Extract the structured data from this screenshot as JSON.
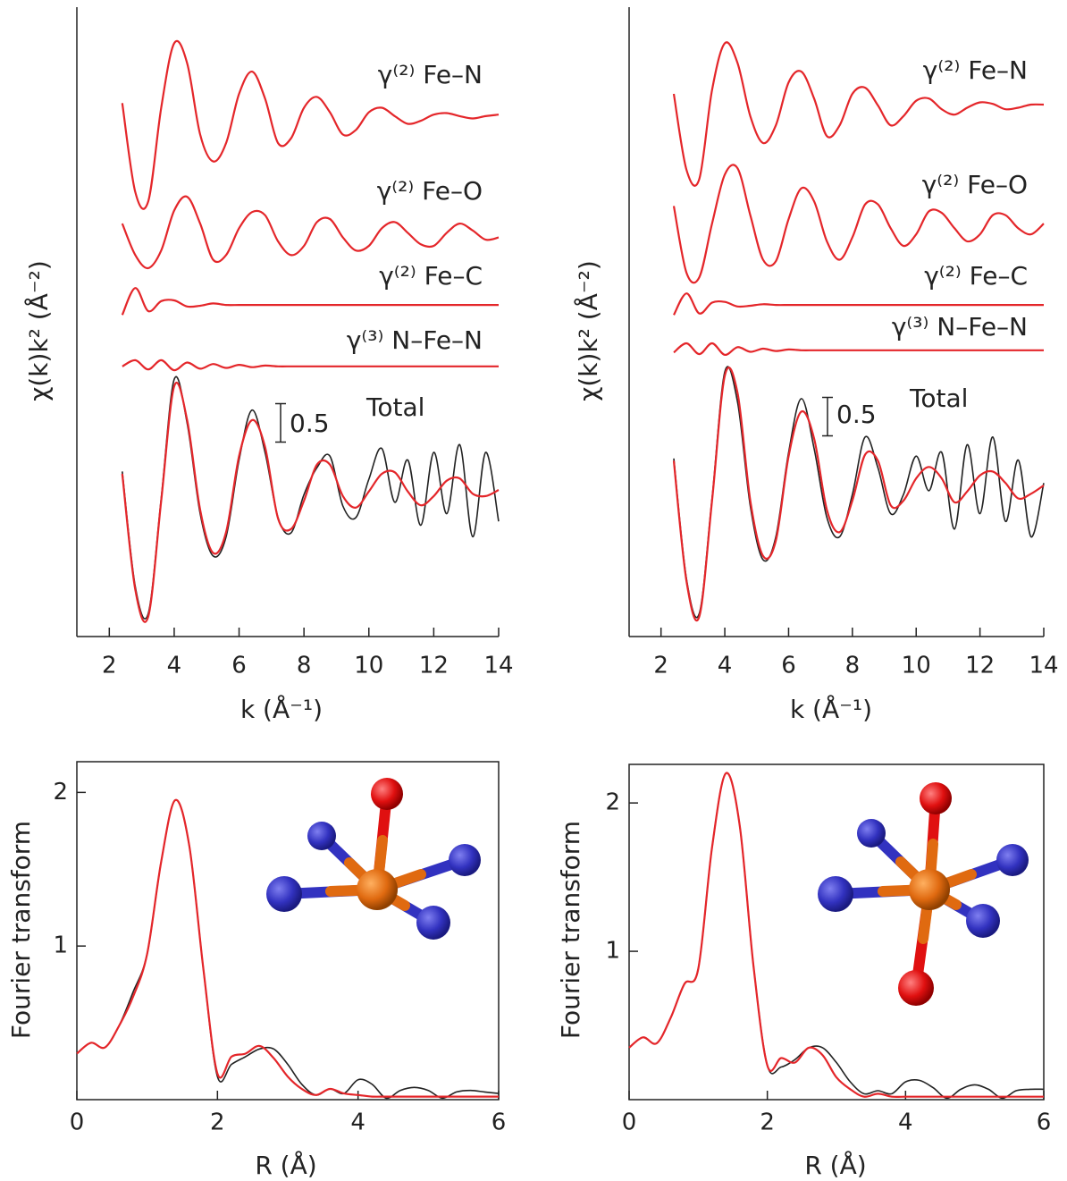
{
  "chart_data": [
    {
      "type": "line",
      "y_label": "χ(k)k² (Å⁻²)",
      "x_label": "k (Å⁻¹)",
      "scale_bar": 0.5,
      "xlim": [
        1,
        14
      ],
      "ylim": [
        0,
        8.2
      ],
      "xticks": [
        2,
        4,
        6,
        8,
        10,
        12,
        14
      ],
      "box": false,
      "x": [
        2.4,
        2.8,
        3.2,
        3.6,
        4.0,
        4.4,
        4.8,
        5.2,
        5.6,
        6.0,
        6.4,
        6.8,
        7.2,
        7.6,
        8.0,
        8.4,
        8.8,
        9.2,
        9.6,
        10.0,
        10.4,
        10.8,
        11.2,
        11.6,
        12.0,
        12.4,
        12.8,
        13.2,
        13.6,
        14.0
      ],
      "series": [
        {
          "name": "γ⁽²⁾ Fe–N",
          "color": "#e4262a",
          "values": [
            6.95,
            5.79,
            5.67,
            6.89,
            7.73,
            7.47,
            6.54,
            6.19,
            6.43,
            7.07,
            7.36,
            7.01,
            6.43,
            6.49,
            6.89,
            7.03,
            6.83,
            6.54,
            6.6,
            6.83,
            6.89,
            6.78,
            6.68,
            6.72,
            6.8,
            6.82,
            6.78,
            6.75,
            6.78,
            6.8
          ]
        },
        {
          "name": "γ⁽²⁾ Fe–O",
          "color": "#e4262a",
          "values": [
            5.38,
            4.97,
            4.8,
            5.03,
            5.55,
            5.73,
            5.38,
            4.91,
            4.97,
            5.32,
            5.53,
            5.49,
            5.15,
            4.97,
            5.09,
            5.4,
            5.44,
            5.2,
            5.03,
            5.09,
            5.32,
            5.4,
            5.26,
            5.11,
            5.09,
            5.26,
            5.38,
            5.29,
            5.17,
            5.2
          ]
        },
        {
          "name": "γ⁽²⁾ Fe–C",
          "color": "#e4262a",
          "values": [
            4.19,
            4.54,
            4.24,
            4.37,
            4.38,
            4.3,
            4.31,
            4.34,
            4.32,
            4.32,
            4.32,
            4.32,
            4.32,
            4.32,
            4.32,
            4.32,
            4.32,
            4.32,
            4.32,
            4.32,
            4.32,
            4.32,
            4.32,
            4.32,
            4.32,
            4.32,
            4.32,
            4.32,
            4.32,
            4.32
          ]
        },
        {
          "name": "γ⁽³⁾ N–Fe–N",
          "color": "#e4262a",
          "values": [
            3.52,
            3.6,
            3.48,
            3.6,
            3.47,
            3.57,
            3.49,
            3.55,
            3.5,
            3.54,
            3.51,
            3.53,
            3.52,
            3.52,
            3.52,
            3.52,
            3.52,
            3.52,
            3.52,
            3.52,
            3.52,
            3.52,
            3.52,
            3.52,
            3.52,
            3.52,
            3.52,
            3.52,
            3.52,
            3.52
          ]
        },
        {
          "color": "#222222",
          "values": [
            2.15,
            0.65,
            0.3,
            1.8,
            3.35,
            2.78,
            1.6,
            1.05,
            1.3,
            2.3,
            2.95,
            2.4,
            1.55,
            1.35,
            1.85,
            2.2,
            2.35,
            1.7,
            1.55,
            2.05,
            2.45,
            1.75,
            2.3,
            1.45,
            2.4,
            1.6,
            2.5,
            1.3,
            2.4,
            1.5
          ]
        },
        {
          "name": "Total",
          "color": "#e4262a",
          "values": [
            2.12,
            0.61,
            0.26,
            1.77,
            3.26,
            2.82,
            1.65,
            1.09,
            1.36,
            2.35,
            2.82,
            2.47,
            1.54,
            1.4,
            1.77,
            2.24,
            2.24,
            1.83,
            1.68,
            1.89,
            2.12,
            2.14,
            1.89,
            1.71,
            1.83,
            2.03,
            2.06,
            1.86,
            1.83,
            1.91
          ]
        }
      ]
    },
    {
      "type": "line",
      "y_label": "χ(k)k² (Å⁻²)",
      "x_label": "k (Å⁻¹)",
      "scale_bar": 0.5,
      "xlim": [
        1,
        14
      ],
      "ylim": [
        0,
        8.2
      ],
      "xticks": [
        2,
        4,
        6,
        8,
        10,
        12,
        14
      ],
      "box": false,
      "x": [
        2.4,
        2.8,
        3.2,
        3.6,
        4.0,
        4.4,
        4.8,
        5.2,
        5.6,
        6.0,
        6.4,
        6.8,
        7.2,
        7.6,
        8.0,
        8.4,
        8.8,
        9.2,
        9.6,
        10.0,
        10.4,
        10.8,
        11.2,
        11.6,
        12.0,
        12.4,
        12.8,
        13.2,
        13.6,
        14.0
      ],
      "series": [
        {
          "name": "γ⁽²⁾ Fe–N",
          "color": "#e4262a",
          "values": [
            7.07,
            6.08,
            5.96,
            7.12,
            7.73,
            7.47,
            6.78,
            6.43,
            6.66,
            7.22,
            7.36,
            7.01,
            6.52,
            6.66,
            7.07,
            7.15,
            6.92,
            6.66,
            6.78,
            6.98,
            7.01,
            6.87,
            6.8,
            6.89,
            6.96,
            6.94,
            6.87,
            6.89,
            6.93,
            6.93
          ]
        },
        {
          "name": "γ⁽²⁾ Fe–O",
          "color": "#e4262a",
          "values": [
            5.61,
            4.74,
            4.68,
            5.38,
            6.02,
            6.1,
            5.49,
            4.91,
            4.89,
            5.44,
            5.84,
            5.67,
            5.15,
            4.91,
            5.2,
            5.63,
            5.63,
            5.32,
            5.09,
            5.24,
            5.54,
            5.52,
            5.32,
            5.15,
            5.24,
            5.49,
            5.49,
            5.32,
            5.24,
            5.38
          ]
        },
        {
          "name": "γ⁽²⁾ Fe–C",
          "color": "#e4262a",
          "values": [
            4.19,
            4.47,
            4.21,
            4.35,
            4.36,
            4.3,
            4.31,
            4.33,
            4.32,
            4.32,
            4.32,
            4.32,
            4.32,
            4.32,
            4.32,
            4.32,
            4.32,
            4.32,
            4.32,
            4.32,
            4.32,
            4.32,
            4.32,
            4.32,
            4.32,
            4.32,
            4.32,
            4.32,
            4.32,
            4.32
          ]
        },
        {
          "name": "γ⁽³⁾ N–Fe–N",
          "color": "#e4262a",
          "values": [
            3.7,
            3.82,
            3.68,
            3.82,
            3.67,
            3.77,
            3.71,
            3.75,
            3.72,
            3.74,
            3.73,
            3.73,
            3.73,
            3.73,
            3.73,
            3.73,
            3.73,
            3.73,
            3.73,
            3.73,
            3.73,
            3.73,
            3.73,
            3.73,
            3.73,
            3.73,
            3.73,
            3.73,
            3.73,
            3.73
          ]
        },
        {
          "color": "#222222",
          "values": [
            2.32,
            0.75,
            0.3,
            1.8,
            3.45,
            3.05,
            1.7,
            1.0,
            1.3,
            2.4,
            3.1,
            2.45,
            1.55,
            1.3,
            1.85,
            2.6,
            2.2,
            1.6,
            1.85,
            2.35,
            1.9,
            2.4,
            1.4,
            2.5,
            1.6,
            2.6,
            1.5,
            2.3,
            1.3,
            2.0
          ]
        },
        {
          "name": "Total",
          "color": "#e4262a",
          "values": [
            2.29,
            0.72,
            0.26,
            1.77,
            3.4,
            3.17,
            1.77,
            1.05,
            1.25,
            2.35,
            2.93,
            2.58,
            1.65,
            1.36,
            1.77,
            2.37,
            2.29,
            1.71,
            1.77,
            2.06,
            2.21,
            2.06,
            1.75,
            1.89,
            2.1,
            2.15,
            2.0,
            1.8,
            1.86,
            1.97
          ]
        }
      ]
    },
    {
      "type": "line",
      "y_label": "Fourier transform",
      "x_label": "R (Å)",
      "xlim": [
        0,
        6
      ],
      "ylim": [
        0,
        2.2
      ],
      "xticks": [
        0,
        2,
        4,
        6
      ],
      "yticks": [
        1,
        2
      ],
      "box": true,
      "x": [
        0,
        0.2,
        0.4,
        0.6,
        0.8,
        1.0,
        1.2,
        1.4,
        1.6,
        1.8,
        2.0,
        2.2,
        2.4,
        2.6,
        2.8,
        3.0,
        3.2,
        3.4,
        3.6,
        3.8,
        4.0,
        4.2,
        4.4,
        4.6,
        4.8,
        5.0,
        5.2,
        5.4,
        5.6,
        5.8,
        6.0
      ],
      "series": [
        {
          "color": "#222222",
          "values": [
            0.3,
            0.37,
            0.34,
            0.48,
            0.7,
            0.95,
            1.55,
            1.95,
            1.65,
            0.85,
            0.15,
            0.23,
            0.28,
            0.33,
            0.33,
            0.23,
            0.1,
            0.03,
            0.07,
            0.04,
            0.13,
            0.1,
            0.01,
            0.06,
            0.08,
            0.06,
            0.01,
            0.05,
            0.06,
            0.05,
            0.04
          ]
        },
        {
          "color": "#e4262a",
          "values": [
            0.3,
            0.37,
            0.34,
            0.48,
            0.67,
            0.95,
            1.55,
            1.95,
            1.65,
            0.85,
            0.17,
            0.28,
            0.3,
            0.35,
            0.27,
            0.15,
            0.07,
            0.03,
            0.07,
            0.04,
            0.03,
            0.02,
            0.02,
            0.02,
            0.02,
            0.02,
            0.02,
            0.02,
            0.02,
            0.02,
            0.02
          ]
        }
      ]
    },
    {
      "type": "line",
      "y_label": "Fourier transform",
      "x_label": "R (Å)",
      "xlim": [
        0,
        6
      ],
      "ylim": [
        0,
        2.26
      ],
      "xticks": [
        0,
        2,
        4,
        6
      ],
      "yticks": [
        1,
        2
      ],
      "box": true,
      "x": [
        0,
        0.2,
        0.4,
        0.6,
        0.8,
        1.0,
        1.2,
        1.4,
        1.6,
        1.8,
        2.0,
        2.2,
        2.4,
        2.6,
        2.8,
        3.0,
        3.2,
        3.4,
        3.6,
        3.8,
        4.0,
        4.2,
        4.4,
        4.6,
        4.8,
        5.0,
        5.2,
        5.4,
        5.6,
        5.8,
        6.0
      ],
      "series": [
        {
          "color": "#222222",
          "values": [
            0.35,
            0.42,
            0.38,
            0.55,
            0.78,
            0.88,
            1.7,
            2.2,
            1.85,
            0.9,
            0.23,
            0.22,
            0.27,
            0.35,
            0.35,
            0.25,
            0.12,
            0.04,
            0.06,
            0.04,
            0.12,
            0.13,
            0.08,
            0.01,
            0.07,
            0.1,
            0.07,
            0.01,
            0.06,
            0.07,
            0.07
          ]
        },
        {
          "color": "#e4262a",
          "values": [
            0.35,
            0.42,
            0.38,
            0.55,
            0.78,
            0.88,
            1.7,
            2.2,
            1.85,
            0.9,
            0.23,
            0.28,
            0.25,
            0.35,
            0.3,
            0.15,
            0.07,
            0.02,
            0.04,
            0.02,
            0.02,
            0.02,
            0.02,
            0.02,
            0.02,
            0.02,
            0.02,
            0.02,
            0.02,
            0.02,
            0.02
          ]
        }
      ]
    }
  ]
}
